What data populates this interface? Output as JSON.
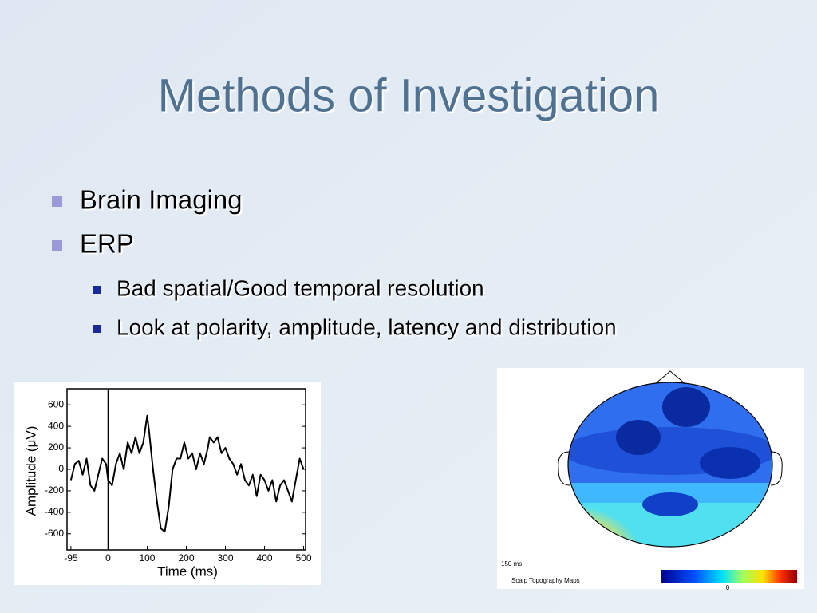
{
  "slide": {
    "title": "Methods of Investigation",
    "bullets": [
      {
        "text": "Brain Imaging",
        "level": 1
      },
      {
        "text": "ERP",
        "level": 1
      },
      {
        "text": "Bad spatial/Good temporal resolution",
        "level": 2
      },
      {
        "text": "Look at polarity, amplitude, latency and distribution",
        "level": 2
      }
    ]
  },
  "chart_data": {
    "type": "line",
    "xlabel": "Time (ms)",
    "ylabel": "Amplitude (μV)",
    "xlim": [
      -105,
      505
    ],
    "ylim": [
      -750,
      750
    ],
    "xticks": [
      -95,
      0,
      100,
      200,
      300,
      400,
      500
    ],
    "yticks": [
      600,
      400,
      200,
      0,
      -200,
      -400,
      -600
    ],
    "color": "#000000",
    "x": [
      -95,
      -85,
      -75,
      -65,
      -55,
      -45,
      -35,
      -25,
      -15,
      -5,
      0,
      10,
      20,
      30,
      40,
      50,
      60,
      70,
      80,
      90,
      100,
      105,
      115,
      125,
      135,
      145,
      155,
      165,
      175,
      185,
      195,
      205,
      215,
      225,
      235,
      245,
      255,
      260,
      270,
      280,
      290,
      300,
      310,
      320,
      330,
      340,
      350,
      360,
      370,
      380,
      390,
      400,
      410,
      420,
      430,
      440,
      450,
      460,
      470,
      480,
      490,
      500
    ],
    "values": [
      -100,
      50,
      80,
      -50,
      100,
      -150,
      -200,
      -50,
      100,
      50,
      -100,
      -150,
      50,
      150,
      0,
      250,
      150,
      300,
      150,
      250,
      500,
      350,
      0,
      -300,
      -550,
      -580,
      -350,
      0,
      100,
      100,
      250,
      100,
      150,
      0,
      150,
      50,
      200,
      300,
      250,
      300,
      150,
      200,
      100,
      50,
      -50,
      50,
      -100,
      -150,
      -50,
      -250,
      -50,
      -100,
      -200,
      -100,
      -300,
      -150,
      -100,
      -200,
      -300,
      -100,
      100,
      0
    ]
  },
  "scalp_map": {
    "time_label": "150 ms",
    "caption": "Scalp Topography Maps",
    "scale_label": "0"
  }
}
